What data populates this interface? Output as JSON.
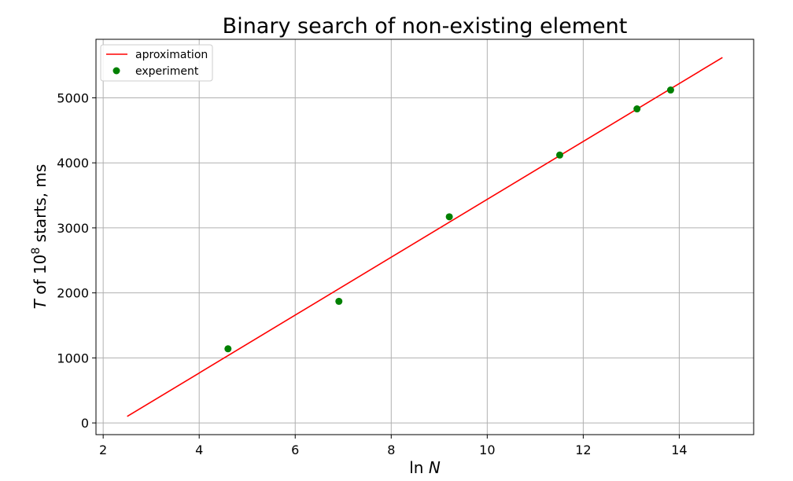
{
  "chart_data": {
    "type": "line",
    "title": "Binary search of non-existing element",
    "xlabel_prefix": "ln",
    "xlabel_var": "N",
    "ylabel_var": "T",
    "ylabel_mid": " of 10",
    "ylabel_sup": "8",
    "ylabel_tail": " starts, ms",
    "xlim": [
      1.85,
      15.55
    ],
    "ylim": [
      -180,
      5900
    ],
    "xticks": [
      2,
      4,
      6,
      8,
      10,
      12,
      14
    ],
    "yticks": [
      0,
      1000,
      2000,
      3000,
      4000,
      5000
    ],
    "grid": true,
    "legend_position": "upper-left",
    "series": [
      {
        "name": "aproximation",
        "kind": "line",
        "color": "#ff0000",
        "x": [
          2.5,
          14.9
        ],
        "y": [
          100,
          5620
        ]
      },
      {
        "name": "experiment",
        "kind": "scatter",
        "color": "#008000",
        "x": [
          4.6,
          6.91,
          9.21,
          11.51,
          13.12,
          13.82
        ],
        "y": [
          1140,
          1870,
          3170,
          4120,
          4830,
          5120
        ]
      }
    ]
  }
}
